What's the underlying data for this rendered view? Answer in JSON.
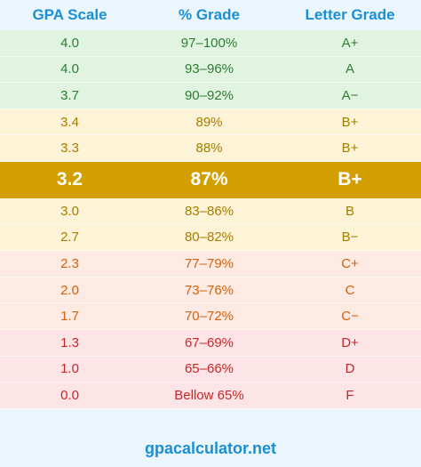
{
  "header": {
    "col1": "GPA Scale",
    "col2": "% Grade",
    "col3": "Letter Grade"
  },
  "rows": [
    {
      "gpa": "4.0",
      "percent": "97–100%",
      "letter": "A+",
      "bg": "#e1f4e1",
      "color": "#2e7d32"
    },
    {
      "gpa": "4.0",
      "percent": "93–96%",
      "letter": "A",
      "bg": "#e1f4e1",
      "color": "#2e7d32"
    },
    {
      "gpa": "3.7",
      "percent": "90–92%",
      "letter": "A−",
      "bg": "#e1f4e1",
      "color": "#2e7d32"
    },
    {
      "gpa": "3.4",
      "percent": "89%",
      "letter": "B+",
      "bg": "#fdf3d6",
      "color": "#a67c00"
    },
    {
      "gpa": "3.3",
      "percent": "88%",
      "letter": "B+",
      "bg": "#fdf3d6",
      "color": "#a67c00"
    },
    {
      "gpa": "3.2",
      "percent": "87%",
      "letter": "B+",
      "bg": "#d39f00",
      "color": "#ffffff",
      "highlight": true
    },
    {
      "gpa": "3.0",
      "percent": "83–86%",
      "letter": "B",
      "bg": "#fdf3d6",
      "color": "#a67c00"
    },
    {
      "gpa": "2.7",
      "percent": "80–82%",
      "letter": "B−",
      "bg": "#fdf3d6",
      "color": "#a67c00"
    },
    {
      "gpa": "2.3",
      "percent": "77–79%",
      "letter": "C+",
      "bg": "#fdeae2",
      "color": "#d3620f"
    },
    {
      "gpa": "2.0",
      "percent": "73–76%",
      "letter": "C",
      "bg": "#fdeae2",
      "color": "#d3620f"
    },
    {
      "gpa": "1.7",
      "percent": "70–72%",
      "letter": "C−",
      "bg": "#fdeae2",
      "color": "#d3620f"
    },
    {
      "gpa": "1.3",
      "percent": "67–69%",
      "letter": "D+",
      "bg": "#fde4e6",
      "color": "#c62828"
    },
    {
      "gpa": "1.0",
      "percent": "65–66%",
      "letter": "D",
      "bg": "#fde4e6",
      "color": "#c62828"
    },
    {
      "gpa": "0.0",
      "percent": "Bellow 65%",
      "letter": "F",
      "bg": "#fde4e6",
      "color": "#c62828"
    }
  ],
  "footer": {
    "site": "gpacalculator.net"
  },
  "colors": {
    "header_text": "#1b8fd6",
    "page_bg": "#eaf6fb"
  }
}
